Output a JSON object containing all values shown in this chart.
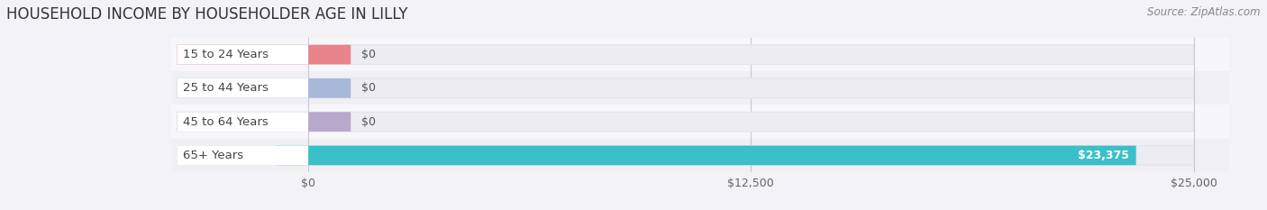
{
  "title": "HOUSEHOLD INCOME BY HOUSEHOLDER AGE IN LILLY",
  "source": "Source: ZipAtlas.com",
  "categories": [
    "15 to 24 Years",
    "25 to 44 Years",
    "45 to 64 Years",
    "65+ Years"
  ],
  "values": [
    0,
    0,
    0,
    23375
  ],
  "max_value": 25000,
  "bar_colors": [
    "#e8848a",
    "#a8b8d8",
    "#b8a8cc",
    "#3bbfc9"
  ],
  "bar_bg_color": "#e4e4ec",
  "bar_bg_face": "#ececf2",
  "value_labels": [
    "$0",
    "$0",
    "$0",
    "$23,375"
  ],
  "xtick_labels": [
    "$0",
    "$12,500",
    "$25,000"
  ],
  "xtick_values": [
    0,
    12500,
    25000
  ],
  "title_fontsize": 12,
  "source_fontsize": 8.5,
  "label_fontsize": 9.5,
  "value_fontsize": 9,
  "background_color": "#f2f2f7",
  "row_bg_colors": [
    "#f7f7fb",
    "#efeff4"
  ],
  "grid_color": "#c8c8d4",
  "white_label_bg": "#ffffff",
  "label_text_color": "#444444"
}
